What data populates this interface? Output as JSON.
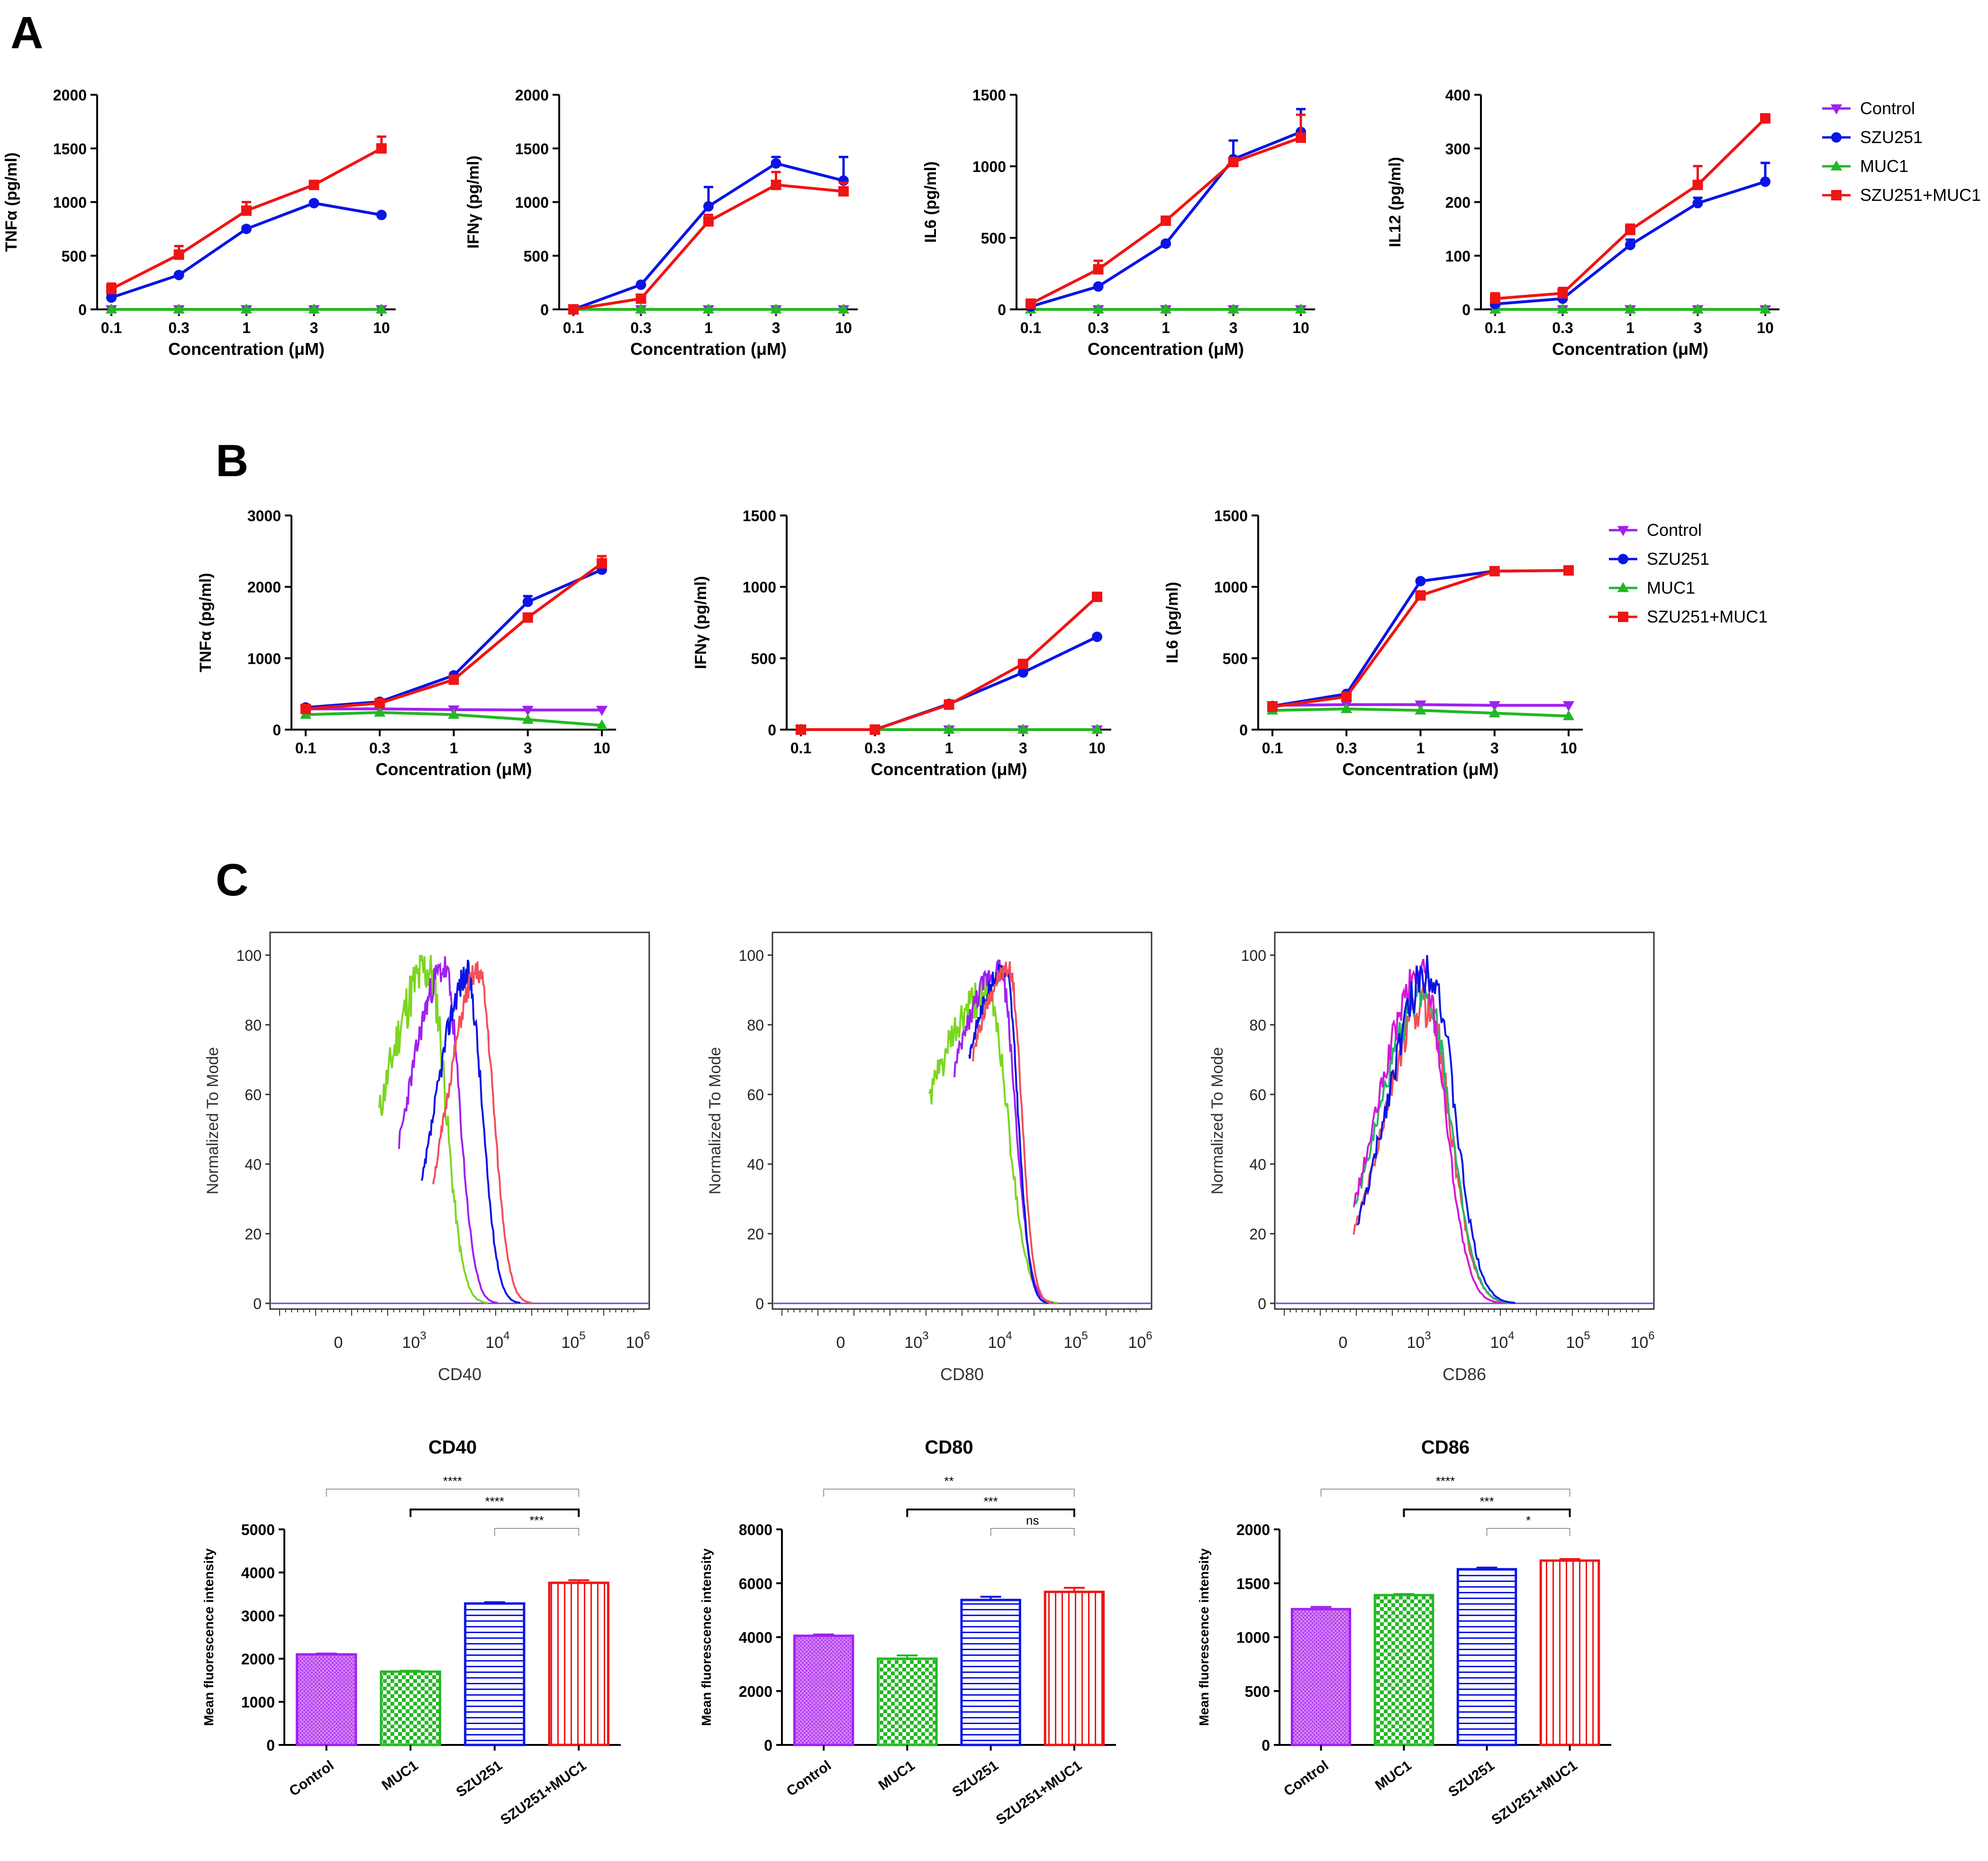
{
  "colors": {
    "control": "#a020f0",
    "szu251": "#0a14e6",
    "muc1": "#22b822",
    "combo": "#f01414",
    "muc1_hist": "#7cd620",
    "combo_hist": "#f2505a"
  },
  "panels": {
    "a": "A",
    "b": "B",
    "c": "C"
  },
  "legend": {
    "items": [
      {
        "label": "Control",
        "color": "#a020f0",
        "marker": "triangle-down"
      },
      {
        "label": "SZU251",
        "color": "#0a14e6",
        "marker": "circle"
      },
      {
        "label": "MUC1",
        "color": "#22b822",
        "marker": "triangle-up"
      },
      {
        "label": "SZU251+MUC1",
        "color": "#f01414",
        "marker": "square"
      }
    ]
  },
  "chart_data": [
    {
      "id": "A1",
      "type": "line",
      "title": "",
      "xlabel": "Concentration (μM)",
      "ylabel": "TNFα (pg/ml)",
      "categories": [
        "0.1",
        "0.3",
        "1",
        "3",
        "10"
      ],
      "ylim": [
        0,
        2000
      ],
      "yticks": [
        0,
        500,
        1000,
        1500,
        2000
      ],
      "series": [
        {
          "name": "Control",
          "values": [
            0,
            0,
            0,
            0,
            0
          ],
          "errors": [
            0,
            0,
            0,
            0,
            0
          ]
        },
        {
          "name": "MUC1",
          "values": [
            0,
            0,
            0,
            0,
            0
          ],
          "errors": [
            0,
            0,
            0,
            0,
            0
          ]
        },
        {
          "name": "SZU251",
          "values": [
            110,
            320,
            750,
            990,
            880
          ],
          "errors": [
            20,
            15,
            20,
            15,
            15
          ]
        },
        {
          "name": "SZU251+MUC1",
          "values": [
            190,
            510,
            920,
            1160,
            1500
          ],
          "errors": [
            50,
            80,
            80,
            30,
            110
          ]
        }
      ]
    },
    {
      "id": "A2",
      "type": "line",
      "title": "",
      "xlabel": "Concentration (μM)",
      "ylabel": "IFNγ (pg/ml)",
      "categories": [
        "0.1",
        "0.3",
        "1",
        "3",
        "10"
      ],
      "ylim": [
        0,
        2000
      ],
      "yticks": [
        0,
        500,
        1000,
        1500,
        2000
      ],
      "series": [
        {
          "name": "Control",
          "values": [
            0,
            0,
            0,
            0,
            0
          ],
          "errors": [
            0,
            0,
            0,
            0,
            0
          ]
        },
        {
          "name": "MUC1",
          "values": [
            0,
            0,
            0,
            0,
            0
          ],
          "errors": [
            0,
            0,
            0,
            0,
            0
          ]
        },
        {
          "name": "SZU251",
          "values": [
            0,
            230,
            960,
            1360,
            1200
          ],
          "errors": [
            0,
            10,
            180,
            60,
            220
          ]
        },
        {
          "name": "SZU251+MUC1",
          "values": [
            0,
            100,
            820,
            1160,
            1100
          ],
          "errors": [
            0,
            10,
            60,
            120,
            80
          ]
        }
      ]
    },
    {
      "id": "A3",
      "type": "line",
      "title": "",
      "xlabel": "Concentration (μM)",
      "ylabel": "IL6 (pg/ml)",
      "categories": [
        "0.1",
        "0.3",
        "1",
        "3",
        "10"
      ],
      "ylim": [
        0,
        1500
      ],
      "yticks": [
        0,
        500,
        1000,
        1500
      ],
      "series": [
        {
          "name": "Control",
          "values": [
            0,
            0,
            0,
            0,
            0
          ],
          "errors": [
            0,
            0,
            0,
            0,
            0
          ]
        },
        {
          "name": "MUC1",
          "values": [
            0,
            0,
            0,
            0,
            0
          ],
          "errors": [
            0,
            0,
            0,
            0,
            0
          ]
        },
        {
          "name": "SZU251",
          "values": [
            20,
            160,
            460,
            1050,
            1240
          ],
          "errors": [
            5,
            10,
            10,
            130,
            160
          ]
        },
        {
          "name": "SZU251+MUC1",
          "values": [
            40,
            280,
            620,
            1030,
            1200
          ],
          "errors": [
            10,
            60,
            15,
            20,
            160
          ]
        }
      ]
    },
    {
      "id": "A4",
      "type": "line",
      "title": "",
      "xlabel": "Concentration (μM)",
      "ylabel": "IL12 (pg/ml)",
      "categories": [
        "0.1",
        "0.3",
        "1",
        "3",
        "10"
      ],
      "ylim": [
        0,
        400
      ],
      "yticks": [
        0,
        100,
        200,
        300,
        400
      ],
      "series": [
        {
          "name": "Control",
          "values": [
            0,
            0,
            0,
            0,
            0
          ],
          "errors": [
            0,
            0,
            0,
            0,
            0
          ]
        },
        {
          "name": "MUC1",
          "values": [
            0,
            0,
            0,
            0,
            0
          ],
          "errors": [
            0,
            0,
            0,
            0,
            0
          ]
        },
        {
          "name": "SZU251",
          "values": [
            10,
            20,
            120,
            198,
            238
          ],
          "errors": [
            5,
            5,
            10,
            10,
            35
          ]
        },
        {
          "name": "SZU251+MUC1",
          "values": [
            20,
            30,
            148,
            232,
            356
          ],
          "errors": [
            10,
            10,
            10,
            35,
            5
          ]
        }
      ]
    },
    {
      "id": "B1",
      "type": "line",
      "title": "",
      "xlabel": "Concentration (μM)",
      "ylabel": "TNFα (pg/ml)",
      "categories": [
        "0.1",
        "0.3",
        "1",
        "3",
        "10"
      ],
      "ylim": [
        0,
        3000
      ],
      "yticks": [
        0,
        1000,
        2000,
        3000
      ],
      "series": [
        {
          "name": "Control",
          "values": [
            290,
            290,
            280,
            275,
            275
          ],
          "errors": [
            0,
            0,
            0,
            0,
            0
          ]
        },
        {
          "name": "MUC1",
          "values": [
            210,
            240,
            210,
            140,
            60
          ],
          "errors": [
            0,
            0,
            0,
            0,
            0
          ]
        },
        {
          "name": "SZU251",
          "values": [
            310,
            390,
            760,
            1790,
            2240
          ],
          "errors": [
            20,
            20,
            20,
            80,
            50
          ]
        },
        {
          "name": "SZU251+MUC1",
          "values": [
            290,
            370,
            700,
            1570,
            2330
          ],
          "errors": [
            15,
            15,
            30,
            30,
            100
          ]
        }
      ]
    },
    {
      "id": "B2",
      "type": "line",
      "title": "",
      "xlabel": "Concentration (μM)",
      "ylabel": "IFNγ (pg/ml)",
      "categories": [
        "0.1",
        "0.3",
        "1",
        "3",
        "10"
      ],
      "ylim": [
        0,
        1500
      ],
      "yticks": [
        0,
        500,
        1000,
        1500
      ],
      "series": [
        {
          "name": "Control",
          "values": [
            0,
            0,
            0,
            0,
            0
          ],
          "errors": [
            0,
            0,
            0,
            0,
            0
          ]
        },
        {
          "name": "MUC1",
          "values": [
            0,
            0,
            0,
            0,
            0
          ],
          "errors": [
            0,
            0,
            0,
            0,
            0
          ]
        },
        {
          "name": "SZU251",
          "values": [
            0,
            0,
            180,
            400,
            650
          ],
          "errors": [
            0,
            0,
            10,
            10,
            10
          ]
        },
        {
          "name": "SZU251+MUC1",
          "values": [
            0,
            0,
            175,
            460,
            930
          ],
          "errors": [
            0,
            0,
            10,
            10,
            10
          ]
        }
      ]
    },
    {
      "id": "B3",
      "type": "line",
      "title": "",
      "xlabel": "Concentration (μM)",
      "ylabel": "IL6 (pg/ml)",
      "categories": [
        "0.1",
        "0.3",
        "1",
        "3",
        "10"
      ],
      "ylim": [
        0,
        1500
      ],
      "yticks": [
        0,
        500,
        1000,
        1500
      ],
      "series": [
        {
          "name": "Control",
          "values": [
            170,
            175,
            175,
            170,
            170
          ],
          "errors": [
            0,
            0,
            0,
            0,
            0
          ]
        },
        {
          "name": "MUC1",
          "values": [
            135,
            145,
            135,
            115,
            95
          ],
          "errors": [
            0,
            0,
            0,
            0,
            0
          ]
        },
        {
          "name": "SZU251",
          "values": [
            165,
            250,
            1040,
            1110,
            1115
          ],
          "errors": [
            10,
            10,
            10,
            10,
            10
          ]
        },
        {
          "name": "SZU251+MUC1",
          "values": [
            160,
            230,
            940,
            1110,
            1115
          ],
          "errors": [
            10,
            10,
            10,
            10,
            10
          ]
        }
      ]
    },
    {
      "id": "C1",
      "type": "line",
      "subtype": "histogram",
      "xlabel": "CD40",
      "ylabel": "Normalized To Mode",
      "xticks": [
        "0",
        "10^3",
        "10^4",
        "10^5",
        "10^6"
      ],
      "ylim": [
        0,
        100
      ],
      "yticks": [
        0,
        20,
        40,
        60,
        80,
        100
      ],
      "series": [
        {
          "name": "MUC1",
          "peak_decade": 3.2,
          "peak": 97,
          "x": [
            0.5,
            0.62,
            0.7,
            0.8,
            0.9,
            1.0,
            1.1,
            1.2,
            1.3,
            1.45
          ],
          "y": [
            0,
            60,
            75,
            80,
            85,
            97,
            70,
            25,
            3,
            0
          ]
        },
        {
          "name": "Control",
          "peak_decade": 3.4,
          "peak": 96,
          "x": [
            0.55,
            0.7,
            0.85,
            1.0,
            1.15,
            1.3,
            1.45,
            1.6
          ],
          "y": [
            0,
            30,
            50,
            75,
            96,
            85,
            20,
            0
          ]
        },
        {
          "name": "SZU251",
          "peak_decade": 3.55,
          "peak": 94,
          "x": [
            0.55,
            0.7,
            0.9,
            1.1,
            1.25,
            1.4,
            1.55,
            1.7
          ],
          "y": [
            0,
            15,
            30,
            50,
            85,
            94,
            45,
            0
          ]
        },
        {
          "name": "SZU251+MUC1",
          "peak_decade": 3.65,
          "peak": 95,
          "x": [
            0.55,
            0.75,
            0.95,
            1.15,
            1.35,
            1.5,
            1.65,
            1.8
          ],
          "y": [
            0,
            10,
            22,
            40,
            75,
            95,
            60,
            0
          ]
        }
      ]
    },
    {
      "id": "C2",
      "type": "line",
      "subtype": "histogram",
      "xlabel": "CD80",
      "ylabel": "Normalized To Mode",
      "xticks": [
        "0",
        "10^3",
        "10^4",
        "10^5",
        "10^6"
      ],
      "ylim": [
        0,
        100
      ],
      "yticks": [
        0,
        20,
        40,
        60,
        80,
        100
      ],
      "series": [
        {
          "name": "MUC1",
          "peak": 90,
          "x": [
            0.2,
            0.6,
            0.9,
            1.1,
            1.3,
            1.45,
            1.6
          ],
          "y": [
            0,
            5,
            20,
            35,
            60,
            90,
            0
          ]
        },
        {
          "name": "Control",
          "peak": 97,
          "x": [
            0.2,
            0.6,
            0.9,
            1.2,
            1.4,
            1.55,
            1.7
          ],
          "y": [
            0,
            3,
            10,
            25,
            55,
            97,
            0
          ]
        },
        {
          "name": "SZU251",
          "peak": 96,
          "x": [
            0.2,
            0.7,
            1.0,
            1.3,
            1.5,
            1.62,
            1.75
          ],
          "y": [
            0,
            3,
            8,
            12,
            40,
            96,
            0
          ]
        },
        {
          "name": "SZU251+MUC1",
          "peak": 96,
          "x": [
            0.2,
            0.7,
            1.0,
            1.3,
            1.55,
            1.68,
            1.8
          ],
          "y": [
            0,
            4,
            8,
            10,
            35,
            96,
            0
          ]
        }
      ]
    },
    {
      "id": "C3",
      "type": "line",
      "subtype": "histogram",
      "xlabel": "CD86",
      "ylabel": "Normalized To Mode",
      "xticks": [
        "0",
        "10^3",
        "10^4",
        "10^5",
        "10^6"
      ],
      "ylim": [
        0,
        100
      ],
      "yticks": [
        0,
        20,
        40,
        60,
        80,
        100
      ],
      "series": [
        {
          "name": "Control",
          "peak": 95
        },
        {
          "name": "MUC1",
          "peak": 90
        },
        {
          "name": "SZU251",
          "peak": 96
        },
        {
          "name": "SZU251+MUC1",
          "peak": 86
        }
      ]
    },
    {
      "id": "C4",
      "type": "bar",
      "title": "CD40",
      "ylabel": "Mean fluorescence intensity",
      "categories": [
        "Control",
        "MUC1",
        "SZU251",
        "SZU251+MUC1"
      ],
      "values": [
        2100,
        1700,
        3280,
        3760
      ],
      "errors": [
        20,
        20,
        30,
        60
      ],
      "ylim": [
        0,
        5000
      ],
      "yticks": [
        0,
        1000,
        2000,
        3000,
        4000,
        5000
      ],
      "significance": [
        {
          "from": 0,
          "to": 3,
          "label": "****"
        },
        {
          "from": 1,
          "to": 3,
          "label": "****"
        },
        {
          "from": 2,
          "to": 3,
          "label": "***"
        }
      ]
    },
    {
      "id": "C5",
      "type": "bar",
      "title": "CD80",
      "ylabel": "Mean fluorescence intensity",
      "categories": [
        "Control",
        "MUC1",
        "SZU251",
        "SZU251+MUC1"
      ],
      "values": [
        4050,
        3200,
        5380,
        5680
      ],
      "errors": [
        50,
        120,
        120,
        150
      ],
      "ylim": [
        0,
        8000
      ],
      "yticks": [
        0,
        2000,
        4000,
        6000,
        8000
      ],
      "significance": [
        {
          "from": 0,
          "to": 3,
          "label": "**"
        },
        {
          "from": 1,
          "to": 3,
          "label": "***"
        },
        {
          "from": 2,
          "to": 3,
          "label": "ns"
        }
      ]
    },
    {
      "id": "C6",
      "type": "bar",
      "title": "CD86",
      "ylabel": "Mean fluorescence intensity",
      "categories": [
        "Control",
        "MUC1",
        "SZU251",
        "SZU251+MUC1"
      ],
      "values": [
        1260,
        1390,
        1630,
        1710
      ],
      "errors": [
        20,
        10,
        15,
        15
      ],
      "ylim": [
        0,
        2000
      ],
      "yticks": [
        0,
        500,
        1000,
        1500,
        2000
      ],
      "significance": [
        {
          "from": 0,
          "to": 3,
          "label": "****"
        },
        {
          "from": 1,
          "to": 3,
          "label": "***"
        },
        {
          "from": 2,
          "to": 3,
          "label": "*"
        }
      ]
    }
  ]
}
